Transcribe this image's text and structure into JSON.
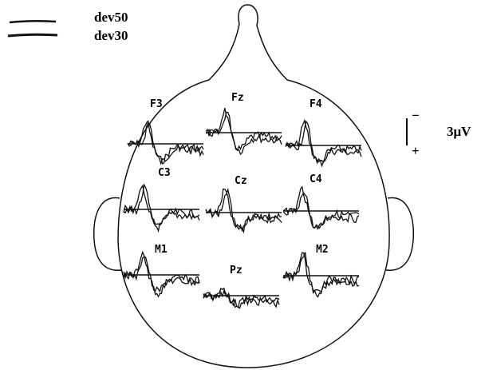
{
  "legend": [
    {
      "label": "dev50"
    },
    {
      "label": "dev30"
    }
  ],
  "scale": {
    "minus": "−",
    "plus": "+",
    "label": "3μV"
  },
  "electrodes": [
    {
      "label": "F3"
    },
    {
      "label": "Fz"
    },
    {
      "label": "F4"
    },
    {
      "label": "C3"
    },
    {
      "label": "Cz"
    },
    {
      "label": "C4"
    },
    {
      "label": "M1"
    },
    {
      "label": "Pz"
    },
    {
      "label": "M2"
    }
  ]
}
